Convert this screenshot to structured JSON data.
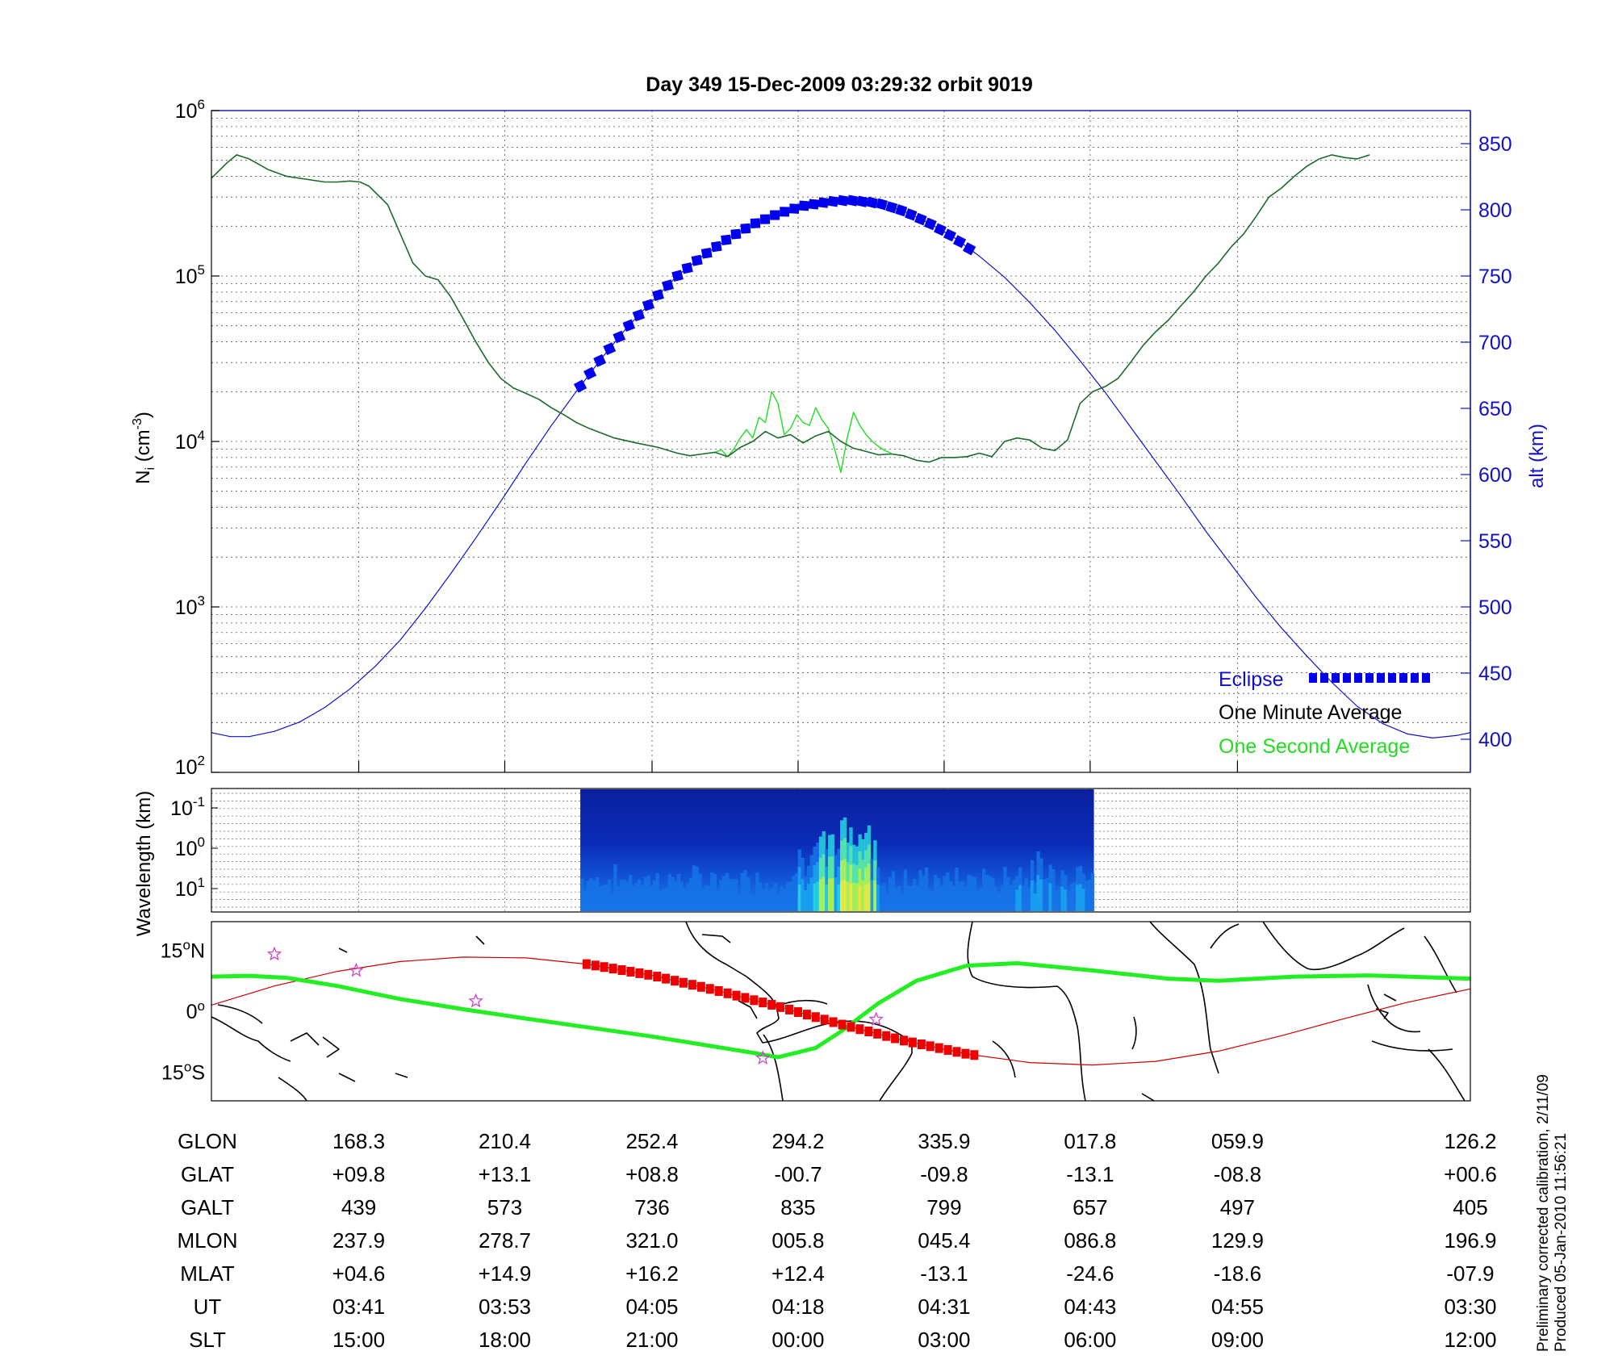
{
  "title": "Day 349  15-Dec-2009 03:29:32   orbit 9019",
  "colors": {
    "ni_minute": "#1a6b2c",
    "ni_second": "#22dd22",
    "altitude": "#1010cc",
    "eclipse": "#0000ee",
    "track_line": "#cc0000",
    "track_eclipse": "#ee0000",
    "mag_equator": "#22ee22",
    "stars": "#cc44cc",
    "right_axis": "#1010cc"
  },
  "chart_data": [
    {
      "type": "line",
      "panel": "density",
      "ylabel": "N",
      "ylabel_sub": "i",
      "ylabel_unit": "(cm",
      "ylabel_exp": "-3",
      "ylabel_close": ")",
      "y_scale": "log",
      "ylim": [
        100,
        1000000
      ],
      "y_ticks": [
        {
          "base": "10",
          "exp": "2",
          "value": 100
        },
        {
          "base": "10",
          "exp": "3",
          "value": 1000
        },
        {
          "base": "10",
          "exp": "4",
          "value": 10000
        },
        {
          "base": "10",
          "exp": "5",
          "value": 100000
        },
        {
          "base": "10",
          "exp": "6",
          "value": 1000000
        }
      ],
      "y2label": "alt (km)",
      "y2lim": [
        375,
        875
      ],
      "y2_ticks": [
        "400",
        "450",
        "500",
        "550",
        "600",
        "650",
        "700",
        "750",
        "800",
        "850"
      ],
      "x_ticks_ut": [
        "03:41",
        "03:53",
        "04:05",
        "04:18",
        "04:31",
        "04:43",
        "04:55",
        "03:30"
      ],
      "grid": true,
      "legend": [
        {
          "label": "Eclipse",
          "key": "eclipse"
        },
        {
          "label": "One Minute Average",
          "key": "minute"
        },
        {
          "label": "One Second Average",
          "key": "second"
        }
      ],
      "legend_position": "bottom-right",
      "series": [
        {
          "name": "One Minute Average",
          "axis": "left",
          "x_frac": [
            0,
            0.012,
            0.02,
            0.03,
            0.045,
            0.06,
            0.075,
            0.09,
            0.1,
            0.11,
            0.118,
            0.125,
            0.14,
            0.15,
            0.16,
            0.17,
            0.18,
            0.19,
            0.2,
            0.21,
            0.22,
            0.23,
            0.24,
            0.25,
            0.26,
            0.27,
            0.28,
            0.29,
            0.3,
            0.32,
            0.34,
            0.355,
            0.37,
            0.38,
            0.39,
            0.4,
            0.41,
            0.42,
            0.43,
            0.44,
            0.45,
            0.46,
            0.47,
            0.48,
            0.49,
            0.5,
            0.51,
            0.52,
            0.53,
            0.54,
            0.55,
            0.56,
            0.57,
            0.58,
            0.59,
            0.6,
            0.61,
            0.62,
            0.63,
            0.64,
            0.65,
            0.66,
            0.67,
            0.68,
            0.69,
            0.7,
            0.71,
            0.72,
            0.73,
            0.74,
            0.75,
            0.76,
            0.77,
            0.78,
            0.79,
            0.8,
            0.81,
            0.82,
            0.83,
            0.84,
            0.85,
            0.86,
            0.87,
            0.88,
            0.89,
            0.9,
            0.91,
            0.92
          ],
          "values": [
            390000,
            480000,
            540000,
            510000,
            440000,
            400000,
            385000,
            370000,
            370000,
            375000,
            370000,
            350000,
            270000,
            180000,
            120000,
            100000,
            95000,
            75000,
            55000,
            40000,
            30000,
            24000,
            21000,
            19500,
            18000,
            16000,
            14500,
            13000,
            12000,
            10500,
            9700,
            9200,
            8500,
            8200,
            8400,
            8600,
            8100,
            9200,
            10000,
            11500,
            10500,
            11000,
            9800,
            10800,
            11500,
            10000,
            9100,
            8700,
            8300,
            8400,
            8200,
            7700,
            7500,
            8000,
            8000,
            8100,
            8500,
            8100,
            10000,
            10500,
            10200,
            9100,
            8800,
            10200,
            17000,
            20000,
            21500,
            24000,
            30000,
            38000,
            46000,
            54000,
            66000,
            80000,
            100000,
            120000,
            150000,
            180000,
            230000,
            300000,
            340000,
            400000,
            460000,
            510000,
            540000,
            520000,
            510000,
            540000
          ]
        },
        {
          "name": "One Second Average",
          "axis": "left",
          "x_frac": [
            0.4,
            0.405,
            0.41,
            0.415,
            0.42,
            0.425,
            0.43,
            0.435,
            0.44,
            0.445,
            0.45,
            0.455,
            0.46,
            0.465,
            0.47,
            0.475,
            0.48,
            0.485,
            0.49,
            0.495,
            0.5,
            0.505,
            0.51,
            0.515,
            0.52,
            0.525,
            0.53,
            0.535,
            0.54
          ],
          "values": [
            8600,
            8900,
            8100,
            9000,
            10500,
            11800,
            10500,
            14000,
            13000,
            20000,
            17000,
            11000,
            12000,
            14500,
            13000,
            12500,
            16000,
            13500,
            12000,
            9000,
            6500,
            10500,
            15000,
            12500,
            11000,
            10000,
            9300,
            8800,
            8500
          ]
        },
        {
          "name": "Altitude",
          "axis": "right",
          "x_frac": [
            0,
            0.015,
            0.03,
            0.05,
            0.07,
            0.09,
            0.11,
            0.13,
            0.15,
            0.17,
            0.19,
            0.21,
            0.23,
            0.25,
            0.27,
            0.29,
            0.31,
            0.33,
            0.35,
            0.37,
            0.39,
            0.41,
            0.43,
            0.45,
            0.47,
            0.49,
            0.5,
            0.51,
            0.53,
            0.55,
            0.57,
            0.59,
            0.61,
            0.63,
            0.65,
            0.67,
            0.69,
            0.71,
            0.73,
            0.75,
            0.77,
            0.79,
            0.81,
            0.83,
            0.85,
            0.87,
            0.89,
            0.91,
            0.93,
            0.95,
            0.97,
            0.99,
            1.0
          ],
          "values": [
            405,
            402,
            402,
            406,
            413,
            424,
            438,
            455,
            475,
            499,
            525,
            552,
            580,
            609,
            637,
            663,
            688,
            711,
            731,
            750,
            765,
            778,
            789,
            797,
            803,
            806,
            807,
            807,
            805,
            799,
            790,
            779,
            765,
            749,
            730,
            709,
            686,
            662,
            636,
            610,
            584,
            557,
            532,
            507,
            484,
            463,
            443,
            425,
            412,
            404,
            401,
            403,
            405
          ]
        },
        {
          "name": "Eclipse",
          "axis": "right",
          "x_from": 0.293,
          "x_to": 0.602
        }
      ]
    },
    {
      "type": "heatmap",
      "panel": "spectrogram",
      "ylabel": "Wavelength (km)",
      "y_scale": "log",
      "y_ticks": [
        {
          "base": "10",
          "exp": "-1"
        },
        {
          "base": "10",
          "exp": "0"
        },
        {
          "base": "10",
          "exp": "1"
        }
      ],
      "x_from": 0.293,
      "x_to": 0.701,
      "grid": true
    },
    {
      "type": "scatter",
      "panel": "map",
      "y_ticks": [
        {
          "value": "15",
          "sup": "o",
          "hemi": "N"
        },
        {
          "value": "0",
          "sup": "o",
          "hemi": ""
        },
        {
          "value": "15",
          "sup": "o",
          "hemi": "S"
        }
      ],
      "ylim": [
        -22,
        22
      ],
      "ground_track": {
        "x_frac": [
          0,
          0.05,
          0.1,
          0.15,
          0.2,
          0.25,
          0.3,
          0.35,
          0.4,
          0.45,
          0.5,
          0.55,
          0.6,
          0.65,
          0.7,
          0.75,
          0.8,
          0.85,
          0.9,
          0.95,
          1.0
        ],
        "lat": [
          1.5,
          6.2,
          9.8,
          12.2,
          13.3,
          13.1,
          11.5,
          8.8,
          5.2,
          1.2,
          -3.2,
          -7.2,
          -10.5,
          -12.6,
          -13.2,
          -12.3,
          -9.8,
          -6.0,
          -1.8,
          2.2,
          5.5
        ],
        "eclipse_from": 0.298,
        "eclipse_to": 0.606
      },
      "magnetic_equator": {
        "x_frac": [
          0,
          0.03,
          0.06,
          0.1,
          0.15,
          0.2,
          0.25,
          0.3,
          0.35,
          0.4,
          0.43,
          0.45,
          0.48,
          0.5,
          0.53,
          0.56,
          0.6,
          0.64,
          0.7,
          0.76,
          0.8,
          0.86,
          0.92,
          1.0
        ],
        "lat": [
          8.5,
          8.7,
          8.2,
          6.2,
          3.0,
          0.5,
          -1.8,
          -4.0,
          -6.2,
          -8.7,
          -10.2,
          -11.3,
          -9.0,
          -5.0,
          2.0,
          7.5,
          11.2,
          11.8,
          10.0,
          8.0,
          7.5,
          8.5,
          8.8,
          8.0
        ]
      },
      "stars": [
        {
          "x": 0.05,
          "lat": 14.0
        },
        {
          "x": 0.115,
          "lat": 10.0
        },
        {
          "x": 0.21,
          "lat": 2.5
        },
        {
          "x": 0.438,
          "lat": -11.5
        },
        {
          "x": 0.528,
          "lat": -2.0
        }
      ]
    }
  ],
  "footer": {
    "x_frac": [
      0.117,
      0.233,
      0.35,
      0.466,
      0.582,
      0.698,
      0.815,
      1.0
    ],
    "rows": [
      {
        "label": "GLON",
        "values": [
          "168.3",
          "210.4",
          "252.4",
          "294.2",
          "335.9",
          "017.8",
          "059.9",
          "126.2"
        ]
      },
      {
        "label": "GLAT",
        "values": [
          "+09.8",
          "+13.1",
          "+08.8",
          "-00.7",
          "-09.8",
          "-13.1",
          "-08.8",
          "+00.6"
        ]
      },
      {
        "label": "GALT",
        "values": [
          "439",
          "573",
          "736",
          "835",
          "799",
          "657",
          "497",
          "405"
        ]
      },
      {
        "label": "MLON",
        "values": [
          "237.9",
          "278.7",
          "321.0",
          "005.8",
          "045.4",
          "086.8",
          "129.9",
          "196.9"
        ]
      },
      {
        "label": "MLAT",
        "values": [
          "+04.6",
          "+14.9",
          "+16.2",
          "+12.4",
          "-13.1",
          "-24.6",
          "-18.6",
          "-07.9"
        ]
      },
      {
        "label": "UT",
        "values": [
          "03:41",
          "03:53",
          "04:05",
          "04:18",
          "04:31",
          "04:43",
          "04:55",
          "03:30"
        ]
      },
      {
        "label": "SLT",
        "values": [
          "15:00",
          "18:00",
          "21:00",
          "00:00",
          "03:00",
          "06:00",
          "09:00",
          "12:00"
        ]
      }
    ]
  },
  "side_note": {
    "line1": "Preliminary corrected calibration, 2/11/09",
    "line2": "Produced 05-Jan-2010 11:56:21"
  }
}
